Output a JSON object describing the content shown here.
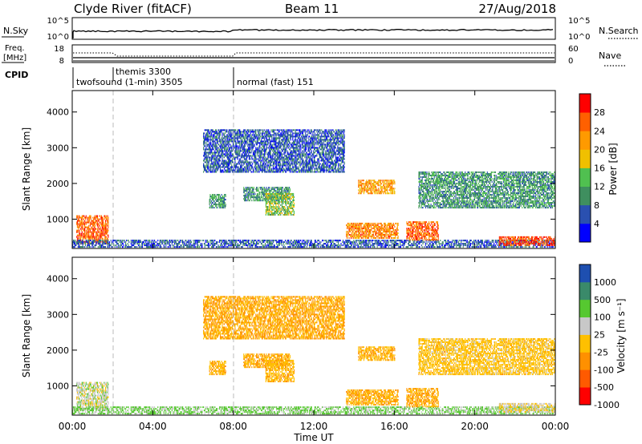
{
  "header": {
    "station": "Clyde River (fitACF)",
    "beam": "Beam 11",
    "date": "27/Aug/2018"
  },
  "nsky_panel": {
    "left_label": "N.Sky",
    "left_ticks": [
      "10^5",
      "10^0"
    ],
    "right_ticks": [
      "10^5",
      "10^0"
    ],
    "right_label": "N.Search"
  },
  "freq_panel": {
    "left_label_1": "Freq.",
    "left_label_2": "[MHz]",
    "left_ticks": [
      "18",
      "8"
    ],
    "right_ticks": [
      "60",
      "0"
    ],
    "right_label": "Nave"
  },
  "cpid_panel": {
    "label": "CPID",
    "modes": [
      {
        "name": "twofsound (1-min) 3505",
        "start_hour": 0
      },
      {
        "name": "themis 3300",
        "start_hour": 2
      },
      {
        "name": "normal (fast) 151",
        "start_hour": 8
      }
    ]
  },
  "x_axis": {
    "label": "Time UT",
    "ticks": [
      "00:00",
      "04:00",
      "08:00",
      "12:00",
      "16:00",
      "20:00",
      "00:00"
    ]
  },
  "power_panel": {
    "ylabel": "Slant Range [km]",
    "yticks": [
      "1000",
      "2000",
      "3000",
      "4000"
    ],
    "colorbar_label": "Power [dB]",
    "colorbar_ticks": [
      "4",
      "8",
      "12",
      "16",
      "20",
      "24",
      "28"
    ],
    "colors": [
      "#0000ff",
      "#2a50b0",
      "#3f8f5f",
      "#50c050",
      "#f0c000",
      "#ff9a00",
      "#ff6000",
      "#ff0000"
    ]
  },
  "velocity_panel": {
    "ylabel": "Slant Range [km]",
    "yticks": [
      "1000",
      "2000",
      "3000",
      "4000"
    ],
    "colorbar_label": "Velocity [m s⁻¹]",
    "colorbar_ticks": [
      "1000",
      "500",
      "100",
      "25",
      "-25",
      "-100",
      "-500",
      "-1000"
    ],
    "colors": [
      "#1e4fb0",
      "#3a8a6a",
      "#56c830",
      "#c8c8c8",
      "#ffc000",
      "#ff9000",
      "#ff5a00",
      "#ff0000"
    ]
  },
  "chart_data": {
    "type": "heatmap",
    "title": "Clyde River (fitACF)  Beam 11  27/Aug/2018",
    "xlabel": "Time UT",
    "ylabel": "Slant Range [km]",
    "xlim_hours": [
      0,
      24
    ],
    "ylim_km": [
      180,
      4600
    ],
    "power_range_db": [
      0,
      30
    ],
    "velocity_range_ms": [
      -1000,
      1000
    ],
    "grid": false,
    "cpid_transitions_hours": [
      2,
      8
    ],
    "scatter_regions": [
      {
        "t": [
          0.2,
          1.8
        ],
        "r": [
          300,
          1100
        ],
        "power_db": 24,
        "velocity_ms": 0
      },
      {
        "t": [
          0.0,
          24.0
        ],
        "r": [
          200,
          400
        ],
        "power_db": 6,
        "velocity_ms": 40
      },
      {
        "t": [
          6.8,
          7.6
        ],
        "r": [
          1300,
          1700
        ],
        "power_db": 10,
        "velocity_ms": -80
      },
      {
        "t": [
          8.5,
          10.8
        ],
        "r": [
          1500,
          1900
        ],
        "power_db": 10,
        "velocity_ms": -100
      },
      {
        "t": [
          9.6,
          11.0
        ],
        "r": [
          1100,
          1700
        ],
        "power_db": 14,
        "velocity_ms": -80
      },
      {
        "t": [
          14.2,
          16.0
        ],
        "r": [
          1700,
          2100
        ],
        "power_db": 20,
        "velocity_ms": -90
      },
      {
        "t": [
          13.6,
          16.2
        ],
        "r": [
          450,
          900
        ],
        "power_db": 22,
        "velocity_ms": -100
      },
      {
        "t": [
          16.6,
          18.2
        ],
        "r": [
          400,
          900
        ],
        "power_db": 24,
        "velocity_ms": -100
      },
      {
        "t": [
          17.2,
          24.0
        ],
        "r": [
          1300,
          2300
        ],
        "power_db": 10,
        "velocity_ms": -60
      },
      {
        "t": [
          21.2,
          24.0
        ],
        "r": [
          250,
          500
        ],
        "power_db": 26,
        "velocity_ms": -20
      },
      {
        "t": [
          6.5,
          13.5
        ],
        "r": [
          2300,
          3500
        ],
        "power_db": 6,
        "velocity_ms": -100
      }
    ]
  }
}
